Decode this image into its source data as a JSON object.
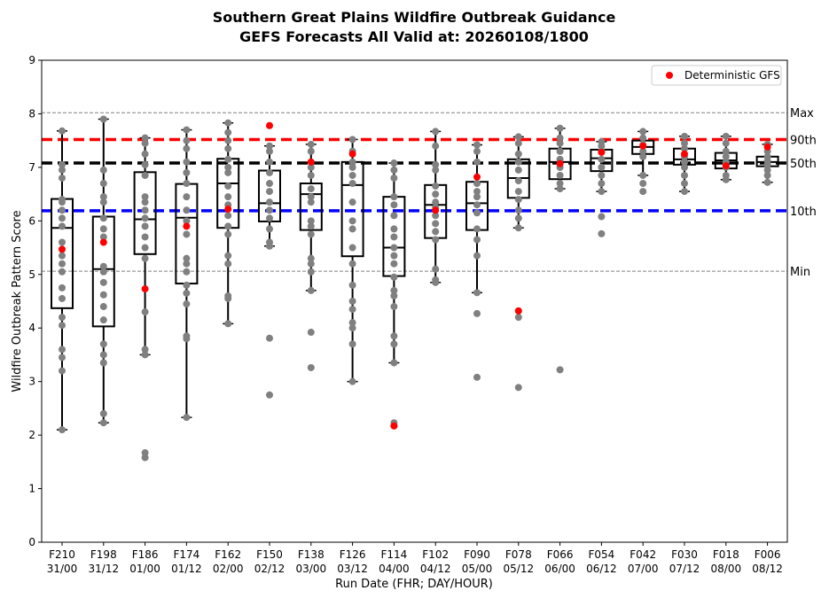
{
  "chart_data": {
    "type": "box",
    "title": "Southern Great Plains Wildfire Outbreak Guidance",
    "subtitle": "GEFS Forecasts All Valid at: 20260108/1800",
    "xlabel": "Run Date (FHR; DAY/HOUR)",
    "ylabel": "Wildfire Outbreak Pattern Score",
    "ylim": [
      0,
      9
    ],
    "yticks": [
      "0",
      "1",
      "2",
      "3",
      "4",
      "5",
      "6",
      "7",
      "8",
      "9"
    ],
    "categories": [
      {
        "fhr": "F210",
        "day": "31/00"
      },
      {
        "fhr": "F198",
        "day": "31/12"
      },
      {
        "fhr": "F186",
        "day": "01/00"
      },
      {
        "fhr": "F174",
        "day": "01/12"
      },
      {
        "fhr": "F162",
        "day": "02/00"
      },
      {
        "fhr": "F150",
        "day": "02/12"
      },
      {
        "fhr": "F138",
        "day": "03/00"
      },
      {
        "fhr": "F126",
        "day": "03/12"
      },
      {
        "fhr": "F114",
        "day": "04/00"
      },
      {
        "fhr": "F102",
        "day": "04/12"
      },
      {
        "fhr": "F090",
        "day": "05/00"
      },
      {
        "fhr": "F078",
        "day": "05/12"
      },
      {
        "fhr": "F066",
        "day": "06/00"
      },
      {
        "fhr": "F054",
        "day": "06/12"
      },
      {
        "fhr": "F042",
        "day": "07/00"
      },
      {
        "fhr": "F030",
        "day": "07/12"
      },
      {
        "fhr": "F018",
        "day": "08/00"
      },
      {
        "fhr": "F006",
        "day": "08/12"
      }
    ],
    "boxes": [
      {
        "wlo": 2.1,
        "q1": 4.37,
        "med": 5.87,
        "q3": 6.41,
        "whi": 7.68
      },
      {
        "wlo": 2.23,
        "q1": 4.03,
        "med": 5.1,
        "q3": 6.08,
        "whi": 7.9
      },
      {
        "wlo": 3.5,
        "q1": 5.38,
        "med": 6.03,
        "q3": 6.91,
        "whi": 7.55
      },
      {
        "wlo": 2.33,
        "q1": 4.83,
        "med": 6.06,
        "q3": 6.69,
        "whi": 7.7
      },
      {
        "wlo": 4.08,
        "q1": 5.87,
        "med": 6.7,
        "q3": 7.16,
        "whi": 7.83
      },
      {
        "wlo": 5.53,
        "q1": 5.99,
        "med": 6.33,
        "q3": 6.94,
        "whi": 7.4
      },
      {
        "wlo": 4.7,
        "q1": 5.83,
        "med": 6.5,
        "q3": 6.7,
        "whi": 7.43
      },
      {
        "wlo": 3.0,
        "q1": 5.34,
        "med": 6.67,
        "q3": 7.1,
        "whi": 7.52
      },
      {
        "wlo": 3.35,
        "q1": 4.97,
        "med": 5.5,
        "q3": 6.45,
        "whi": 7.08
      },
      {
        "wlo": 4.85,
        "q1": 5.68,
        "med": 6.3,
        "q3": 6.67,
        "whi": 7.67
      },
      {
        "wlo": 4.66,
        "q1": 5.83,
        "med": 6.33,
        "q3": 6.73,
        "whi": 7.42
      },
      {
        "wlo": 5.87,
        "q1": 6.43,
        "med": 6.8,
        "q3": 7.15,
        "whi": 7.57
      },
      {
        "wlo": 6.6,
        "q1": 6.78,
        "med": 7.1,
        "q3": 7.35,
        "whi": 7.73
      },
      {
        "wlo": 6.55,
        "q1": 6.93,
        "med": 7.17,
        "q3": 7.33,
        "whi": 7.48
      },
      {
        "wlo": 6.85,
        "q1": 7.25,
        "med": 7.38,
        "q3": 7.5,
        "whi": 7.67
      },
      {
        "wlo": 6.55,
        "q1": 7.05,
        "med": 7.15,
        "q3": 7.35,
        "whi": 7.58
      },
      {
        "wlo": 6.77,
        "q1": 6.98,
        "med": 7.13,
        "q3": 7.27,
        "whi": 7.58
      },
      {
        "wlo": 6.72,
        "q1": 7.02,
        "med": 7.1,
        "q3": 7.2,
        "whi": 7.43
      }
    ],
    "members": [
      [
        2.1,
        3.2,
        3.45,
        3.6,
        4.05,
        4.2,
        4.55,
        4.75,
        5.05,
        5.2,
        5.35,
        5.6,
        5.9,
        6.05,
        6.2,
        6.35,
        6.4,
        6.8,
        6.95,
        7.05,
        7.68
      ],
      [
        2.23,
        2.4,
        3.35,
        3.5,
        3.7,
        4.15,
        4.4,
        4.62,
        4.85,
        5.05,
        5.15,
        5.7,
        5.85,
        6.05,
        6.35,
        6.45,
        6.7,
        6.95,
        7.9
      ],
      [
        1.58,
        1.67,
        3.5,
        3.6,
        4.3,
        5.3,
        5.5,
        5.7,
        5.9,
        6.05,
        6.2,
        6.35,
        6.45,
        6.85,
        7.05,
        7.25,
        7.45,
        7.55
      ],
      [
        2.33,
        3.8,
        3.85,
        4.45,
        4.65,
        4.8,
        5.05,
        5.2,
        5.3,
        5.75,
        6.0,
        6.2,
        6.45,
        6.7,
        6.9,
        7.1,
        7.35,
        7.5,
        7.7
      ],
      [
        4.08,
        4.55,
        4.6,
        5.2,
        5.35,
        5.75,
        5.9,
        6.1,
        6.3,
        6.45,
        6.65,
        6.9,
        7.0,
        7.15,
        7.35,
        7.5,
        7.65,
        7.83
      ],
      [
        2.75,
        3.81,
        5.53,
        5.6,
        5.85,
        6.05,
        6.2,
        6.35,
        6.55,
        6.7,
        6.9,
        7.1,
        7.3,
        7.4
      ],
      [
        3.26,
        3.92,
        4.7,
        5.05,
        5.2,
        5.3,
        5.75,
        5.9,
        6.0,
        6.35,
        6.45,
        6.6,
        6.85,
        7.0,
        7.3,
        7.43
      ],
      [
        3.0,
        3.7,
        4.0,
        4.1,
        4.35,
        4.5,
        4.8,
        5.2,
        5.5,
        5.85,
        6.0,
        6.35,
        6.7,
        6.85,
        7.0,
        7.1,
        7.3,
        7.52
      ],
      [
        2.23,
        3.35,
        3.7,
        3.85,
        4.4,
        4.6,
        4.7,
        4.95,
        5.2,
        5.35,
        5.5,
        5.7,
        5.85,
        6.1,
        6.3,
        6.45,
        6.8,
        6.95,
        7.08
      ],
      [
        4.85,
        4.9,
        5.1,
        5.65,
        5.8,
        5.95,
        6.1,
        6.25,
        6.35,
        6.5,
        6.65,
        6.95,
        7.05,
        7.4,
        7.67
      ],
      [
        3.08,
        4.27,
        4.66,
        5.35,
        5.65,
        5.85,
        6.15,
        6.3,
        6.45,
        6.55,
        6.7,
        7.1,
        7.3,
        7.42
      ],
      [
        2.89,
        4.2,
        5.87,
        6.05,
        6.2,
        6.4,
        6.55,
        6.75,
        6.95,
        7.1,
        7.25,
        7.45,
        7.57
      ],
      [
        3.22,
        6.6,
        6.7,
        6.85,
        7.0,
        7.15,
        7.3,
        7.45,
        7.55,
        7.73
      ],
      [
        5.76,
        6.08,
        6.55,
        6.7,
        6.85,
        7.0,
        7.15,
        7.3,
        7.4,
        7.48
      ],
      [
        6.55,
        6.7,
        6.85,
        7.2,
        7.3,
        7.42,
        7.55,
        7.67
      ],
      [
        6.55,
        6.7,
        6.85,
        7.0,
        7.1,
        7.2,
        7.35,
        7.45,
        7.58
      ],
      [
        6.77,
        6.85,
        7.0,
        7.1,
        7.2,
        7.3,
        7.45,
        7.58
      ],
      [
        6.72,
        6.85,
        6.95,
        7.05,
        7.12,
        7.2,
        7.3,
        7.43
      ]
    ],
    "deterministic": [
      5.47,
      5.6,
      4.73,
      5.9,
      6.22,
      7.78,
      7.1,
      7.25,
      2.17,
      6.2,
      6.82,
      4.32,
      7.07,
      7.28,
      7.4,
      7.25,
      7.03,
      7.38
    ],
    "reference_lines": [
      {
        "label": "Max",
        "value": 8.02,
        "color": "#808080",
        "style": "thin"
      },
      {
        "label": "90th",
        "value": 7.52,
        "color": "#ff0000",
        "style": "thick"
      },
      {
        "label": "50th",
        "value": 7.08,
        "color": "#000000",
        "style": "thick"
      },
      {
        "label": "10th",
        "value": 6.19,
        "color": "#0000ff",
        "style": "thick"
      },
      {
        "label": "Min",
        "value": 5.06,
        "color": "#808080",
        "style": "thin"
      }
    ],
    "legend": {
      "label": "Deterministic GFS",
      "placement": "top-right"
    },
    "colors": {
      "member": "#808080",
      "deterministic": "#ff0000"
    }
  }
}
